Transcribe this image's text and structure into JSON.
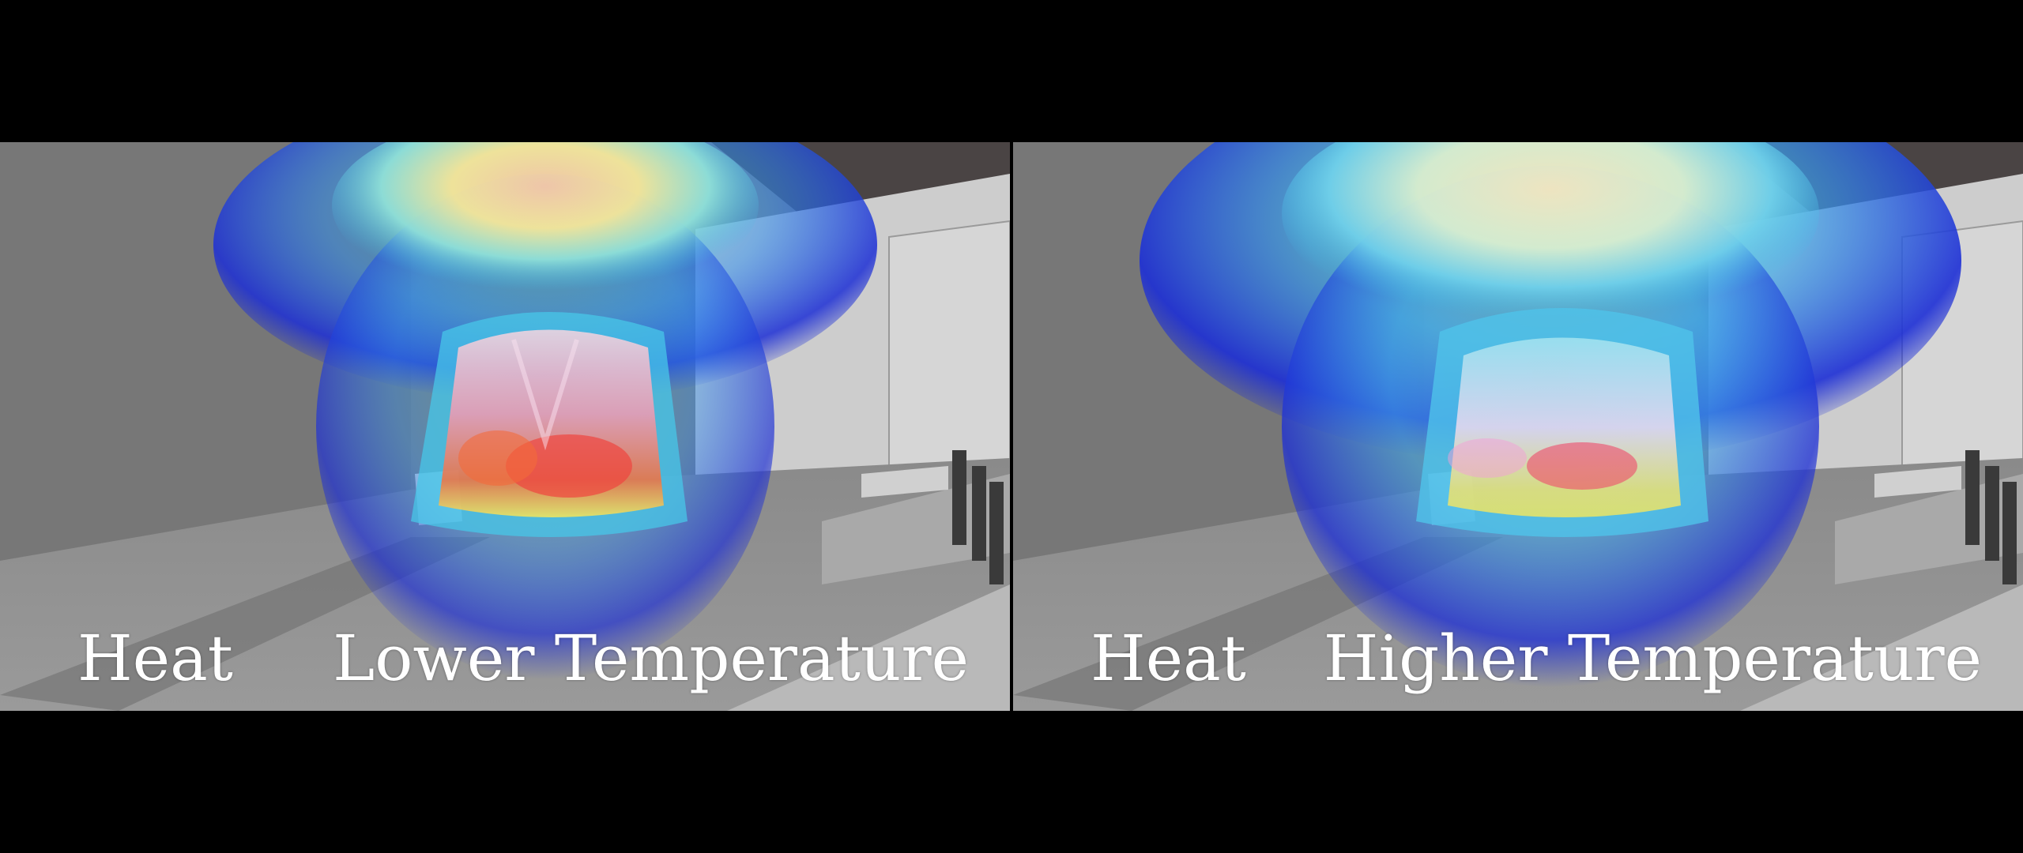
{
  "panels": [
    {
      "heat_label": "Heat",
      "temperature_label": "Lower Temperature"
    },
    {
      "heat_label": "Heat",
      "temperature_label": "Higher Temperature"
    }
  ],
  "colors": {
    "letterbox": "#000000",
    "floor": "#8f8f8f",
    "wall_left": "#7a7a7a",
    "wall_right": "#c9c9c9",
    "ceiling": "#4a4444",
    "plume_outer": "#1d2fd6",
    "plume_mid": "#3fb8e8",
    "plume_warm": "#f5e79a",
    "plume_hot": "#ef4a6a",
    "caption_text": "#ffffff"
  }
}
